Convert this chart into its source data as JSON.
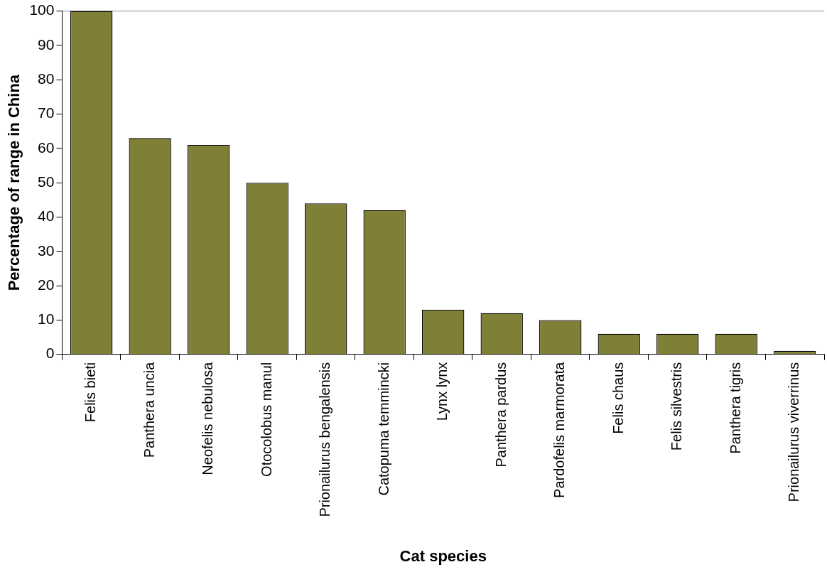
{
  "chart_data": {
    "type": "bar",
    "xlabel": "Cat species",
    "ylabel": "Percentage of range in China",
    "categories": [
      "Felis bieti",
      "Panthera uncia",
      "Neofelis nebulosa",
      "Otocolobus manul",
      "Prionailurus bengalensis",
      "Catopuma temmincki",
      "Lynx lynx",
      "Panthera pardus",
      "Pardofelis marmorata",
      "Felis chaus",
      "Felis silvestris",
      "Panthera tigris",
      "Prionailurus viverrinus"
    ],
    "values": [
      100,
      63,
      61,
      50,
      44,
      42,
      13,
      12,
      10,
      6,
      6,
      6,
      1
    ],
    "color": "#7f7f35",
    "ylim": [
      0,
      100
    ],
    "yticks": [
      0,
      10,
      20,
      30,
      40,
      50,
      60,
      70,
      80,
      90,
      100
    ],
    "legend": false
  }
}
